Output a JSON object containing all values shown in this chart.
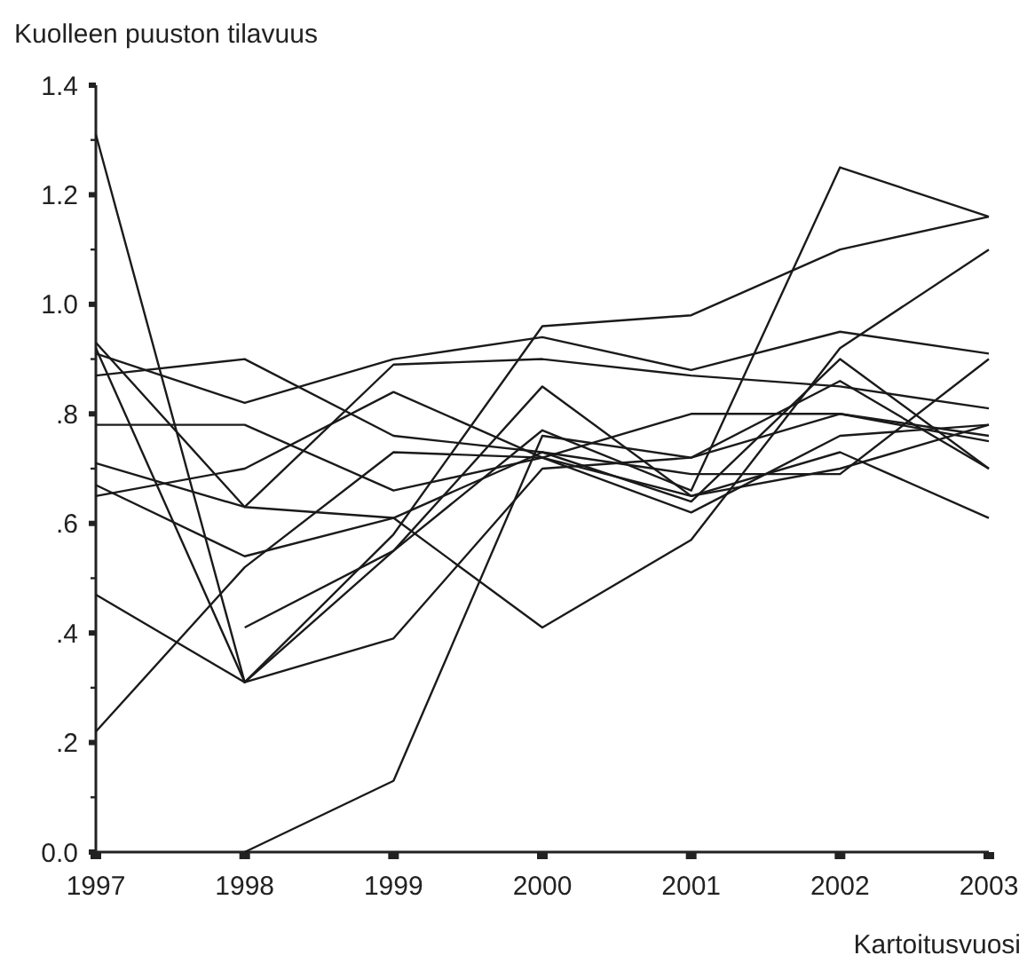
{
  "chart_data": {
    "type": "line",
    "ylabel": "Kuolleen puuston tilavuus",
    "xlabel": "Kartoitusvuosi",
    "categories": [
      "1997",
      "1998",
      "1999",
      "2000",
      "2001",
      "2002",
      "2003"
    ],
    "series": [
      {
        "color": "#1a1a1a",
        "values": [
          1.31,
          0.31,
          0.58,
          0.96,
          0.98,
          1.1,
          1.16
        ]
      },
      {
        "color": "#1a1a1a",
        "values": [
          0.93,
          0.63,
          0.89,
          0.9,
          0.87,
          0.85,
          0.81
        ]
      },
      {
        "color": "#1a1a1a",
        "values": [
          0.92,
          0.31,
          0.39,
          0.7,
          0.72,
          0.86,
          0.7
        ]
      },
      {
        "color": "#1a1a1a",
        "values": [
          0.87,
          0.9,
          0.76,
          0.73,
          0.64,
          0.9,
          0.7
        ]
      },
      {
        "color": "#1a1a1a",
        "values": [
          0.91,
          0.82,
          0.9,
          0.94,
          0.88,
          0.95,
          0.91
        ]
      },
      {
        "color": "#1a1a1a",
        "values": [
          0.78,
          0.78,
          0.66,
          0.72,
          0.8,
          0.8,
          0.75
        ]
      },
      {
        "color": "#1a1a1a",
        "values": [
          0.71,
          0.63,
          0.61,
          0.41,
          0.57,
          0.92,
          1.1
        ]
      },
      {
        "color": "#1a1a1a",
        "values": [
          0.67,
          0.54,
          0.61,
          0.73,
          0.69,
          0.69,
          0.9
        ]
      },
      {
        "color": "#1a1a1a",
        "values": [
          0.65,
          0.7,
          0.84,
          0.72,
          0.62,
          0.76,
          0.78
        ]
      },
      {
        "color": "#1a1a1a",
        "values": [
          0.47,
          0.31,
          0.55,
          0.85,
          0.65,
          0.73,
          0.61
        ]
      },
      {
        "color": "#1a1a1a",
        "values": [
          0.22,
          0.52,
          0.73,
          0.72,
          0.65,
          0.7,
          0.78
        ]
      },
      {
        "color": "#1a1a1a",
        "values": [
          null,
          0.41,
          0.55,
          0.77,
          0.66,
          1.25,
          1.16
        ]
      },
      {
        "color": "#1a1a1a",
        "values": [
          null,
          0.0,
          0.13,
          0.76,
          0.72,
          0.8,
          0.76
        ]
      }
    ],
    "ylim": [
      0,
      1.4
    ],
    "yticks": [
      {
        "value": 0,
        "label": "0.0"
      },
      {
        "value": 0.1,
        "label": null
      },
      {
        "value": 0.2,
        "label": ".2"
      },
      {
        "value": 0.3,
        "label": null
      },
      {
        "value": 0.4,
        "label": ".4"
      },
      {
        "value": 0.5,
        "label": null
      },
      {
        "value": 0.6,
        "label": ".6"
      },
      {
        "value": 0.7,
        "label": null
      },
      {
        "value": 0.8,
        "label": ".8"
      },
      {
        "value": 0.9,
        "label": null
      },
      {
        "value": 1.0,
        "label": "1.0"
      },
      {
        "value": 1.1,
        "label": null
      },
      {
        "value": 1.2,
        "label": "1.2"
      },
      {
        "value": 1.3,
        "label": null
      },
      {
        "value": 1.4,
        "label": "1.4"
      }
    ],
    "grid": false,
    "marker": "none",
    "line_style": "solid"
  }
}
